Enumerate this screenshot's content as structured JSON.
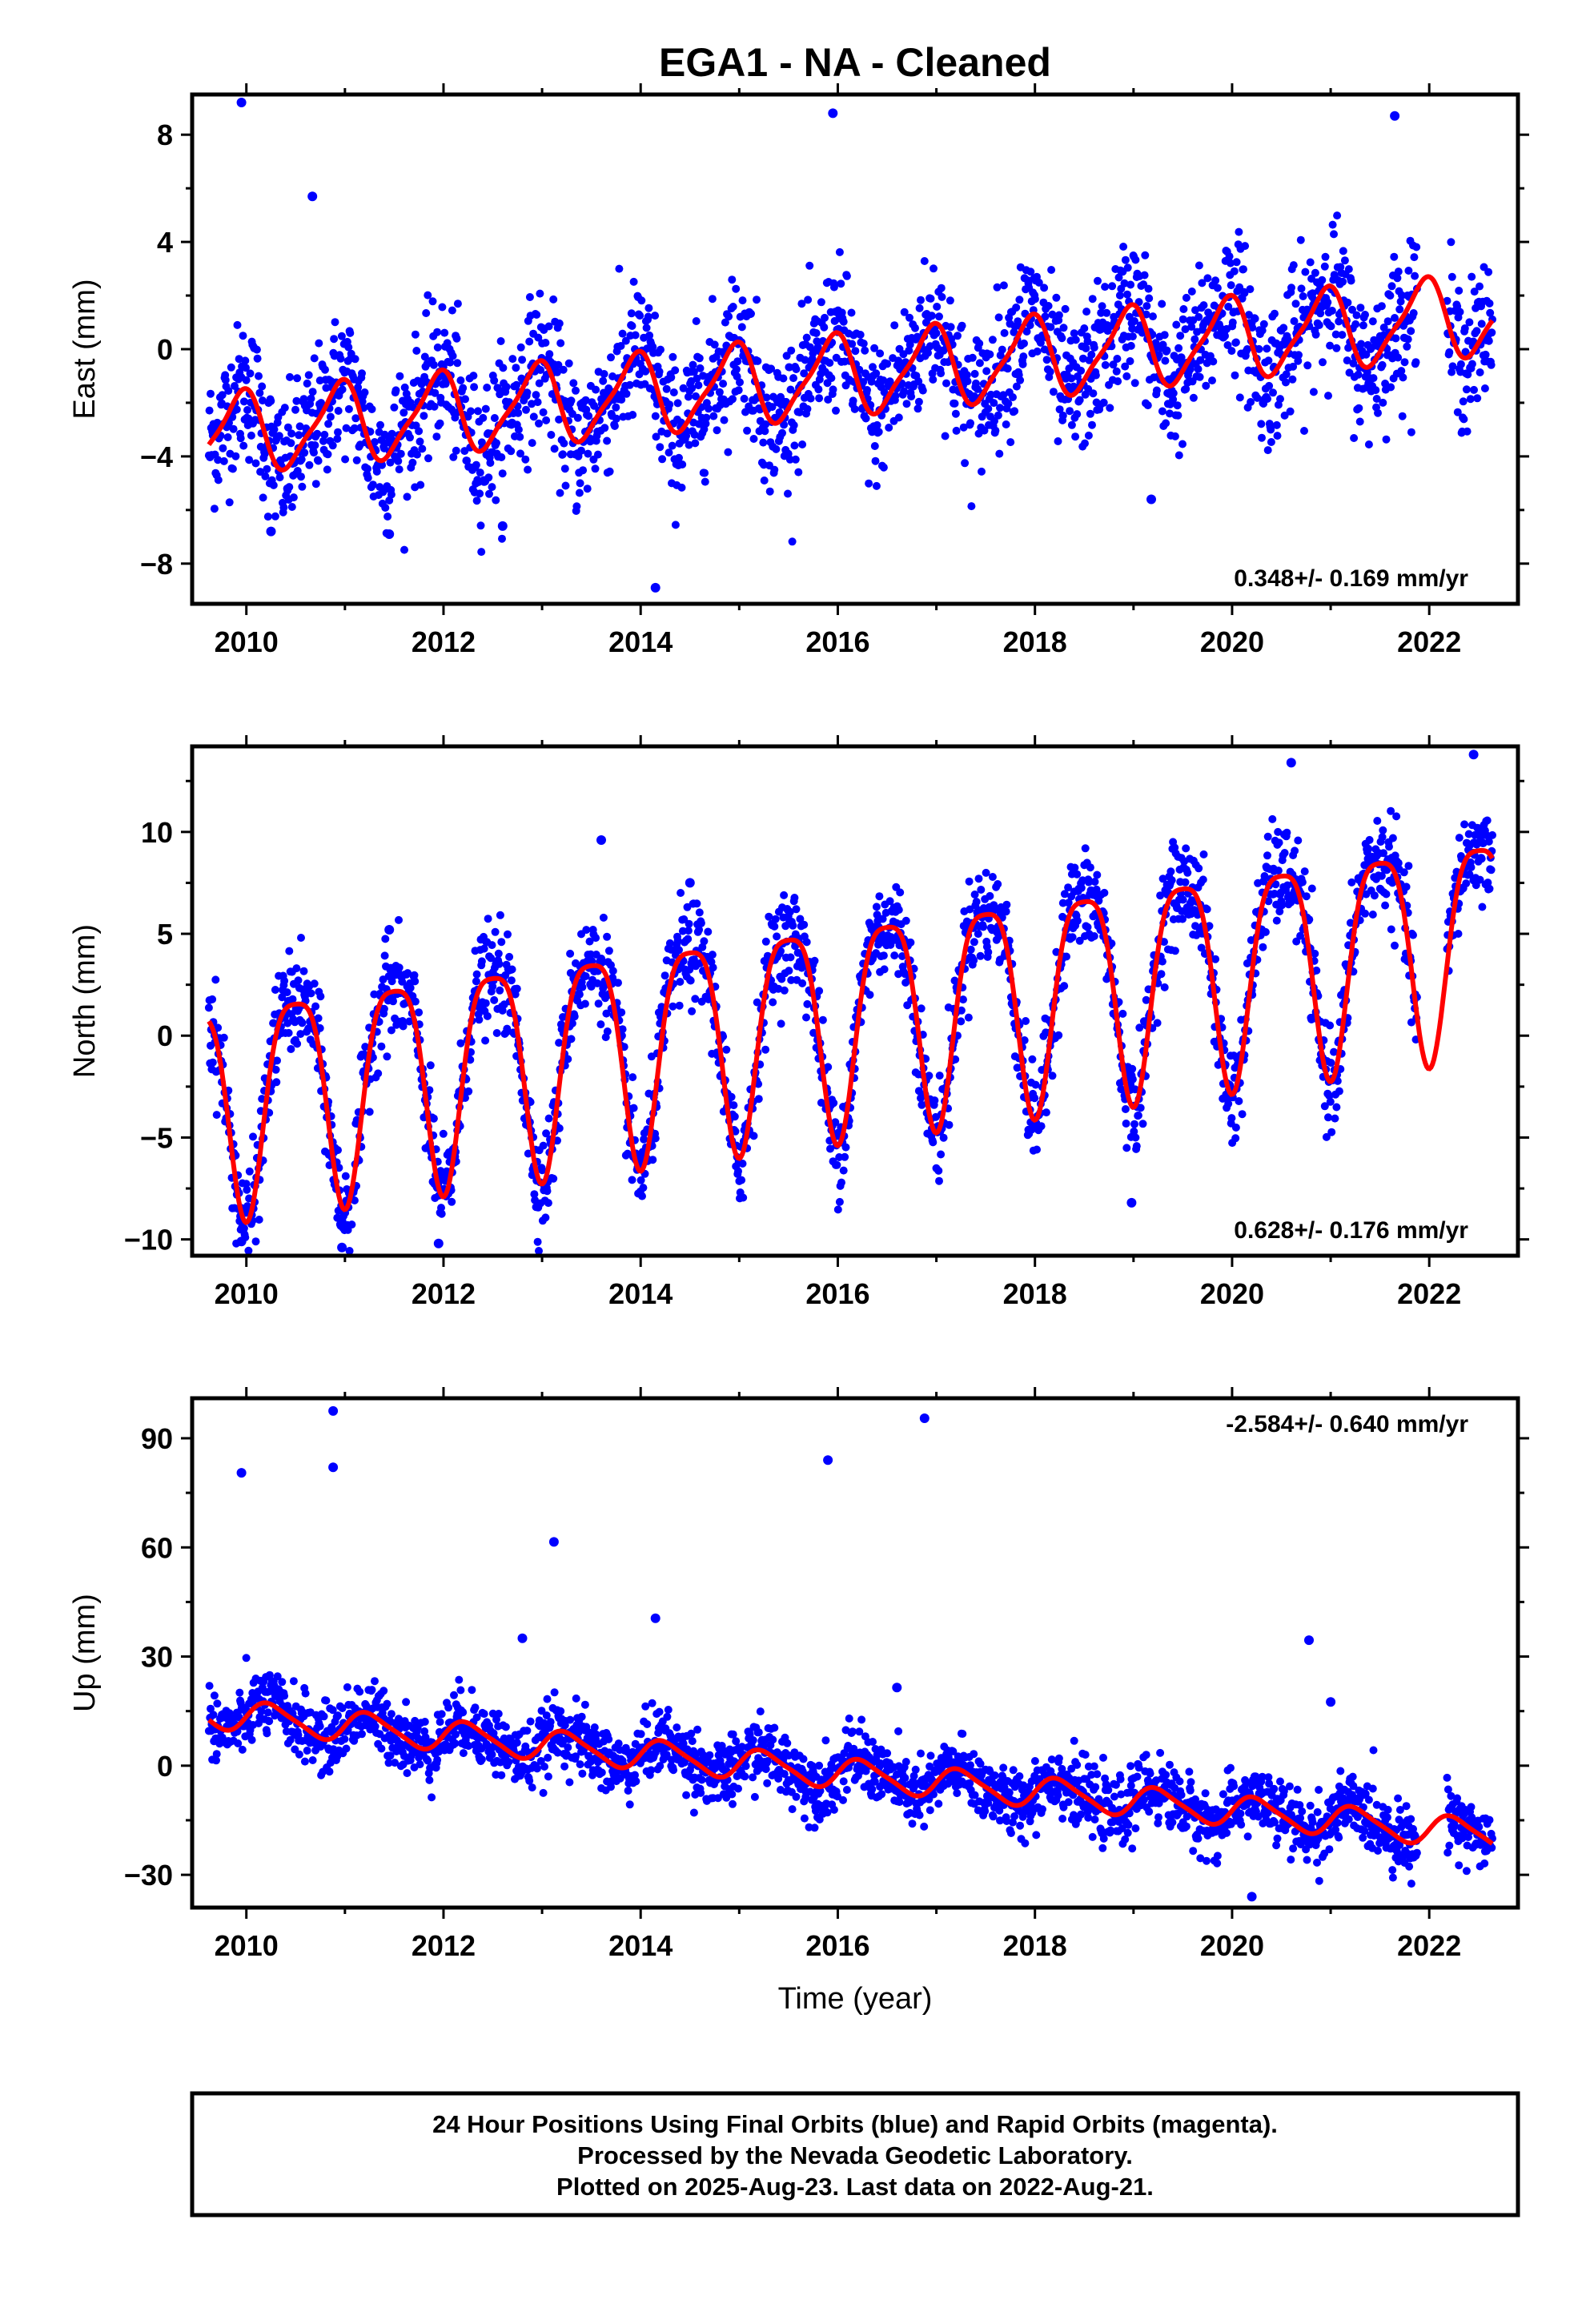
{
  "title": "EGA1  - NA - Cleaned",
  "colors": {
    "points": "#0000ff",
    "fit": "#ff0000",
    "frame": "#000000"
  },
  "x_tick_labels": [
    "2010",
    "2012",
    "2014",
    "2016",
    "2018",
    "2020",
    "2022"
  ],
  "xlabel": "Time (year)",
  "caption": {
    "line1": "24 Hour Positions Using Final Orbits (blue) and Rapid Orbits (magenta).",
    "line2": "Processed by the Nevada Geodetic Laboratory.",
    "line3": "Plotted on 2025-Aug-23. Last data on 2022-Aug-21."
  },
  "chart_data": [
    {
      "type": "scatter",
      "ylabel": "East (mm)",
      "rate_label": "0.348+/- 0.169 mm/yr",
      "xlim": [
        2009.45,
        2022.9
      ],
      "ylim": [
        -9.5,
        9.5
      ],
      "yticks": [
        -8,
        -4,
        0,
        4,
        8
      ],
      "y_tick_labels": [
        "−8",
        "−4",
        "0",
        "4",
        "8"
      ],
      "data_start": 2009.62,
      "data_end": 2022.64,
      "fit": {
        "offset": -1.0,
        "rate": 0.348,
        "amp_annual": 1.45,
        "phase_annual": 2.0,
        "amp_semi": 0.35,
        "phase_semi": 1.0,
        "ref_year": 2016.0
      },
      "scatter_sd": 1.3,
      "outliers": [
        [
          2009.95,
          9.2
        ],
        [
          2015.95,
          8.8
        ],
        [
          2010.67,
          5.7
        ],
        [
          2014.15,
          -8.9
        ],
        [
          2019.18,
          -5.6
        ],
        [
          2021.65,
          8.7
        ],
        [
          2011.45,
          -6.9
        ],
        [
          2012.6,
          -6.6
        ],
        [
          2010.25,
          -6.8
        ]
      ]
    },
    {
      "type": "scatter",
      "ylabel": "North (mm)",
      "rate_label": "0.628+/- 0.176 mm/yr",
      "xlim": [
        2009.45,
        2022.9
      ],
      "ylim": [
        -10.8,
        14.2
      ],
      "yticks": [
        -10,
        -5,
        0,
        5,
        10
      ],
      "y_tick_labels": [
        "−10",
        "−5",
        "0",
        "5",
        "10"
      ],
      "data_start": 2009.62,
      "data_end": 2022.64,
      "fit": {
        "offset": 1.0,
        "rate": 0.628,
        "amp_annual": 5.2,
        "phase_annual": -1.57,
        "amp_semi": 1.2,
        "phase_semi": -1.57,
        "ref_year": 2016.0
      },
      "scatter_sd": 1.2,
      "outliers": [
        [
          2013.6,
          9.6
        ],
        [
          2020.6,
          13.4
        ],
        [
          2022.45,
          13.8
        ],
        [
          2018.98,
          -8.2
        ],
        [
          2010.97,
          -10.4
        ],
        [
          2009.95,
          -10.1
        ],
        [
          2011.95,
          -10.2
        ],
        [
          2011.45,
          5.2
        ],
        [
          2014.5,
          7.5
        ]
      ]
    },
    {
      "type": "scatter",
      "ylabel": "Up (mm)",
      "rate_label": "-2.584+/- 0.640 mm/yr",
      "xlim": [
        2009.45,
        2022.9
      ],
      "ylim": [
        -39,
        101
      ],
      "yticks": [
        -30,
        0,
        30,
        60,
        90
      ],
      "y_tick_labels": [
        "−30",
        "0",
        "30",
        "60",
        "90"
      ],
      "data_start": 2009.62,
      "data_end": 2022.64,
      "fit": {
        "offset": -2.0,
        "rate": -2.584,
        "amp_annual": 4.0,
        "phase_annual": 0.0,
        "amp_semi": 0.8,
        "phase_semi": 0.0,
        "ref_year": 2016.0
      },
      "scatter_sd": 4.5,
      "outliers": [
        [
          2009.95,
          80.5
        ],
        [
          2010.88,
          97.5
        ],
        [
          2010.88,
          82.0
        ],
        [
          2013.12,
          61.5
        ],
        [
          2014.15,
          40.5
        ],
        [
          2015.9,
          84.0
        ],
        [
          2016.88,
          95.5
        ],
        [
          2020.78,
          34.5
        ],
        [
          2021.0,
          17.5
        ],
        [
          2016.6,
          21.5
        ],
        [
          2012.8,
          35.0
        ],
        [
          2020.2,
          -36.0
        ]
      ]
    }
  ]
}
